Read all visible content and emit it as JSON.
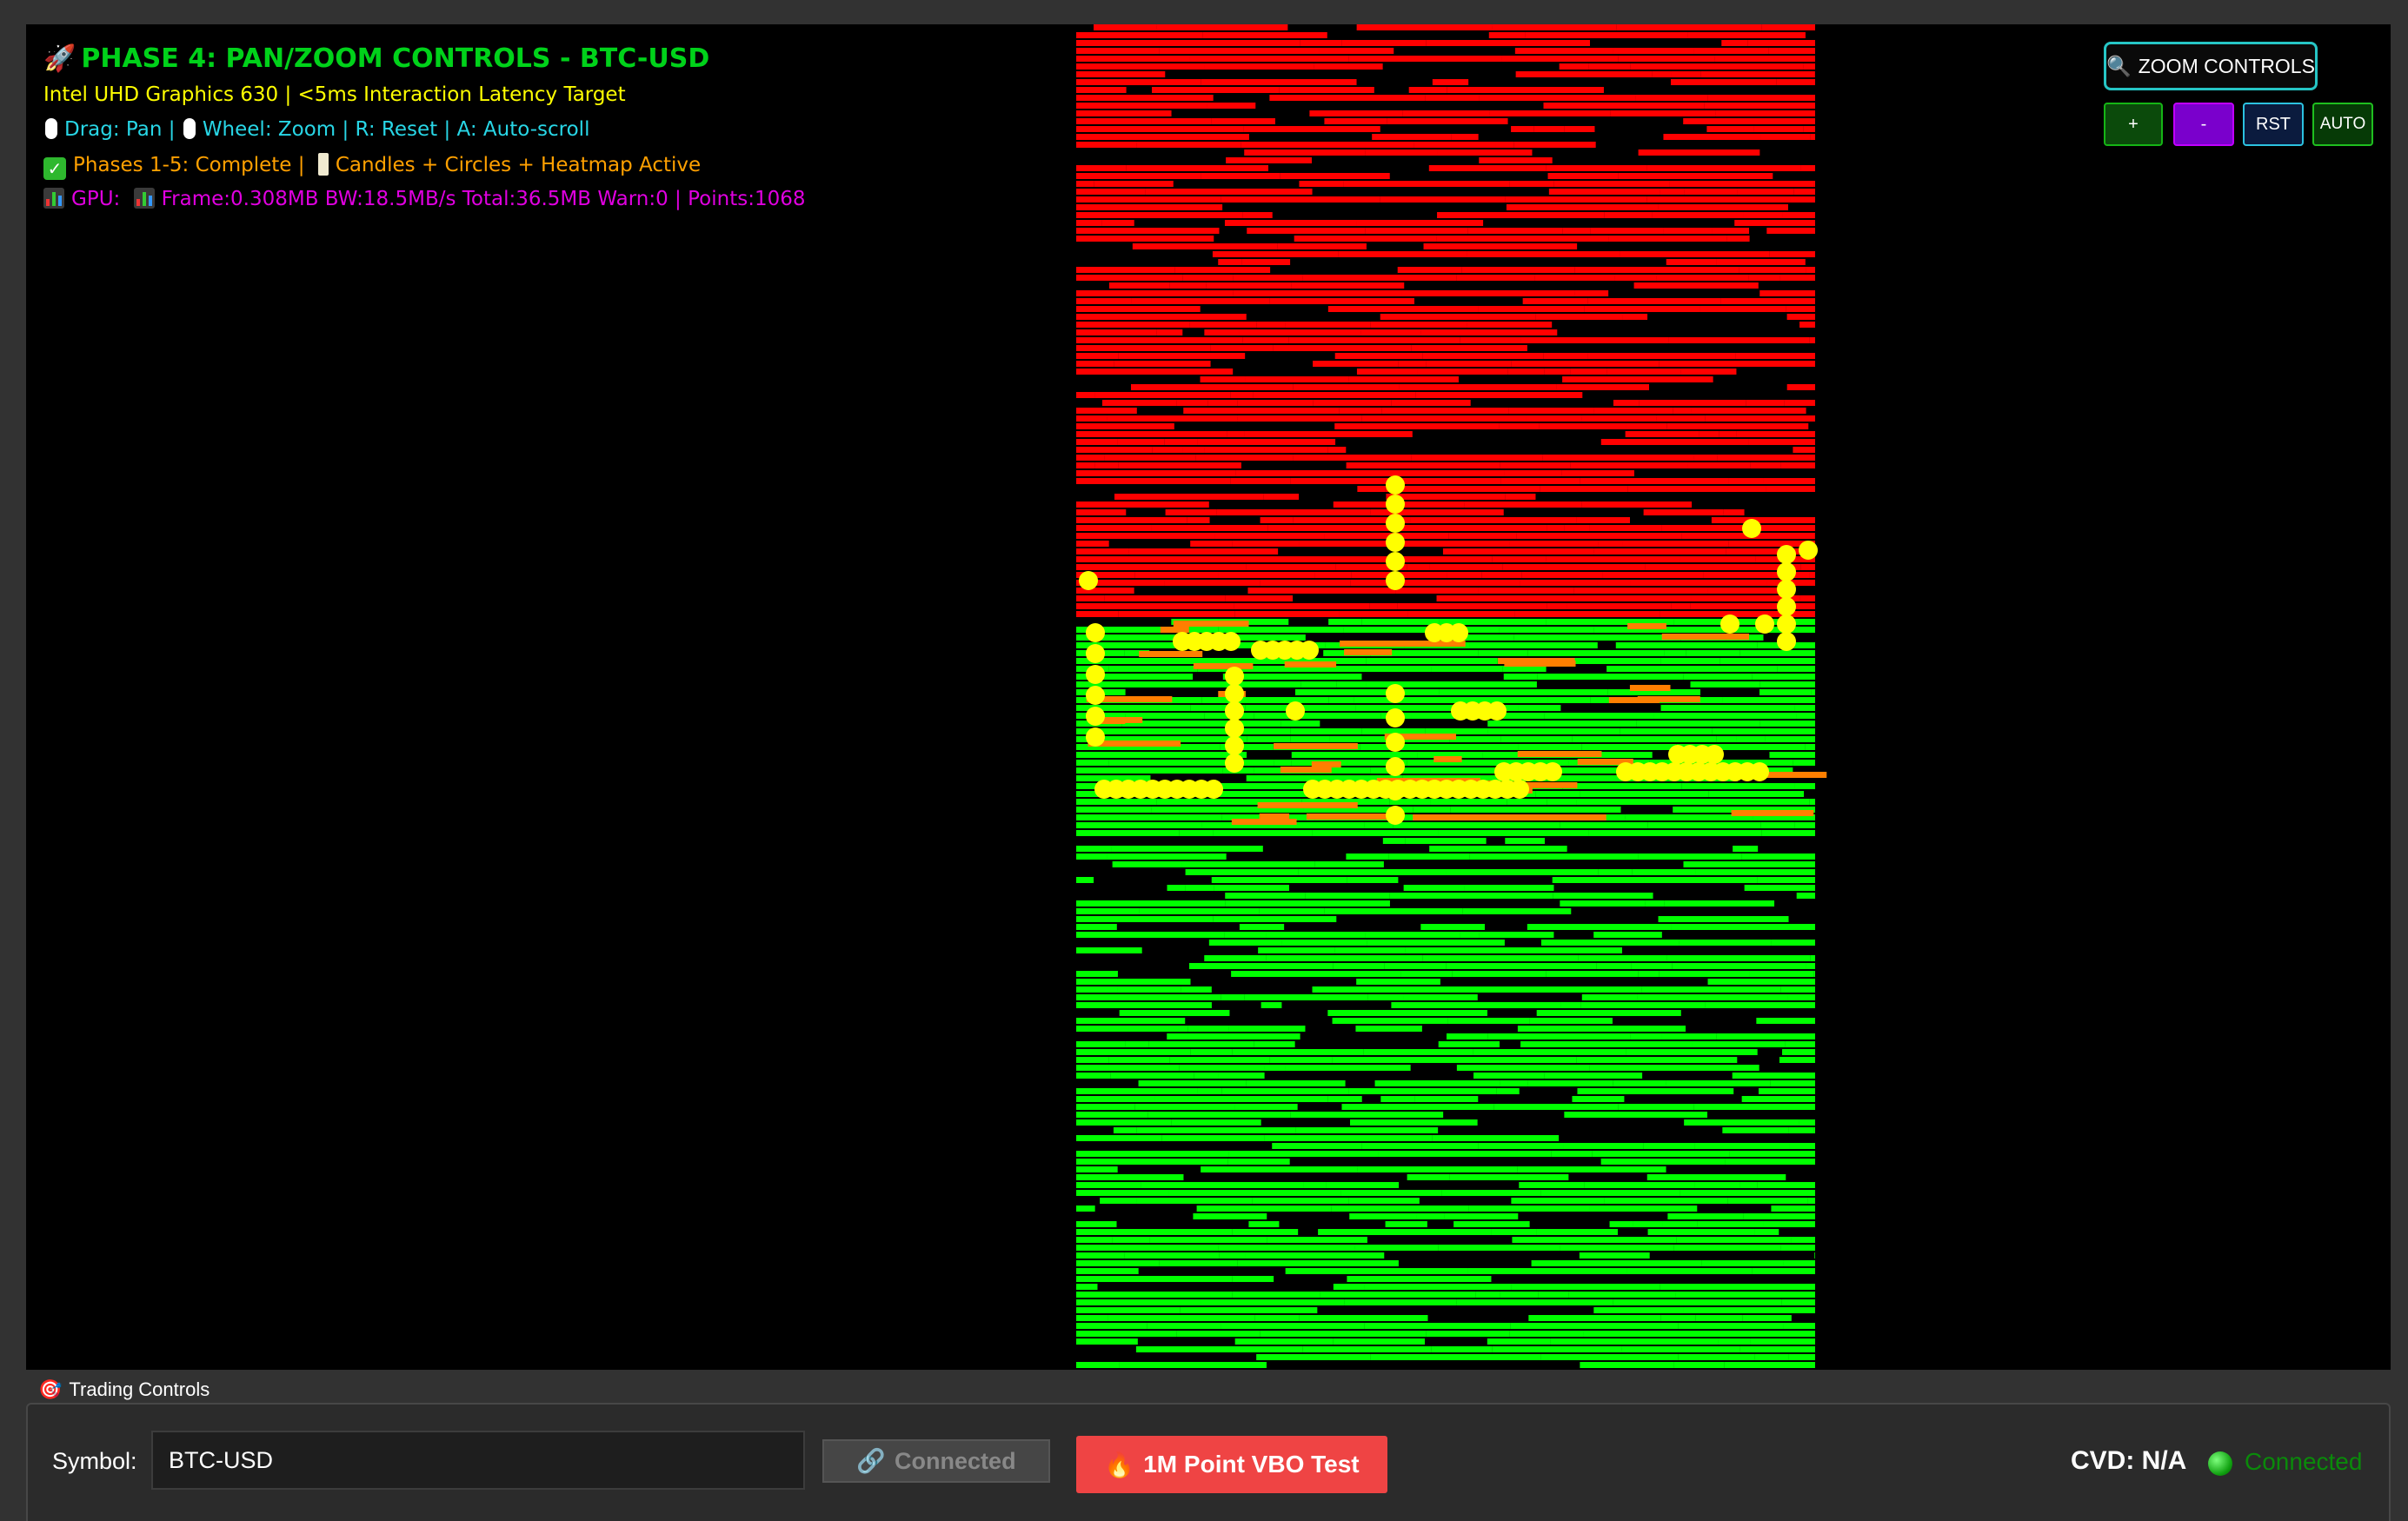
{
  "hud": {
    "title": "PHASE 4: PAN/ZOOM CONTROLS - BTC-USD",
    "gpu_name": "Intel UHD Graphics 630 | <5ms Interaction Latency Target",
    "controls_pan": "Drag: Pan |",
    "controls_rest": "Wheel: Zoom | R: Reset | A: Auto-scroll",
    "phases_a": "Phases 1-5: Complete |",
    "phases_b": "Candles + Circles + Heatmap Active",
    "gpu_prefix": "GPU:",
    "gpu_stats": "Frame:0.308MB BW:18.5MB/s Total:36.5MB Warn:0 | Points:1068",
    "colors": {
      "title": "#00d21a",
      "gpu_name": "#ffff00",
      "controls": "#28d6e6",
      "phases": "#ffa000",
      "stats": "#e000e0"
    }
  },
  "zoom_controls": {
    "title": "ZOOM CONTROLS",
    "title_icon": "magnifier-icon",
    "zoom_in": "+",
    "zoom_out": "-",
    "reset": "RST",
    "auto": "AUTO"
  },
  "heatmap": {
    "colors": {
      "ask": "#ff0000",
      "bid": "#00ff00",
      "mid": "#ff7f00",
      "trade": "#ffff00",
      "background": "#000000"
    }
  },
  "trading_controls": {
    "section_label": "Trading Controls",
    "section_icon": "target-icon",
    "symbol_label": "Symbol:",
    "symbol_value": "BTC-USD",
    "connect_label": "Connected",
    "connect_icon": "link-icon",
    "vbo_test_label": "1M Point VBO Test",
    "vbo_test_icon": "fire-icon",
    "cvd_label": "CVD: N/A",
    "status_text": "Connected",
    "status_color": "#0a8a0a"
  }
}
